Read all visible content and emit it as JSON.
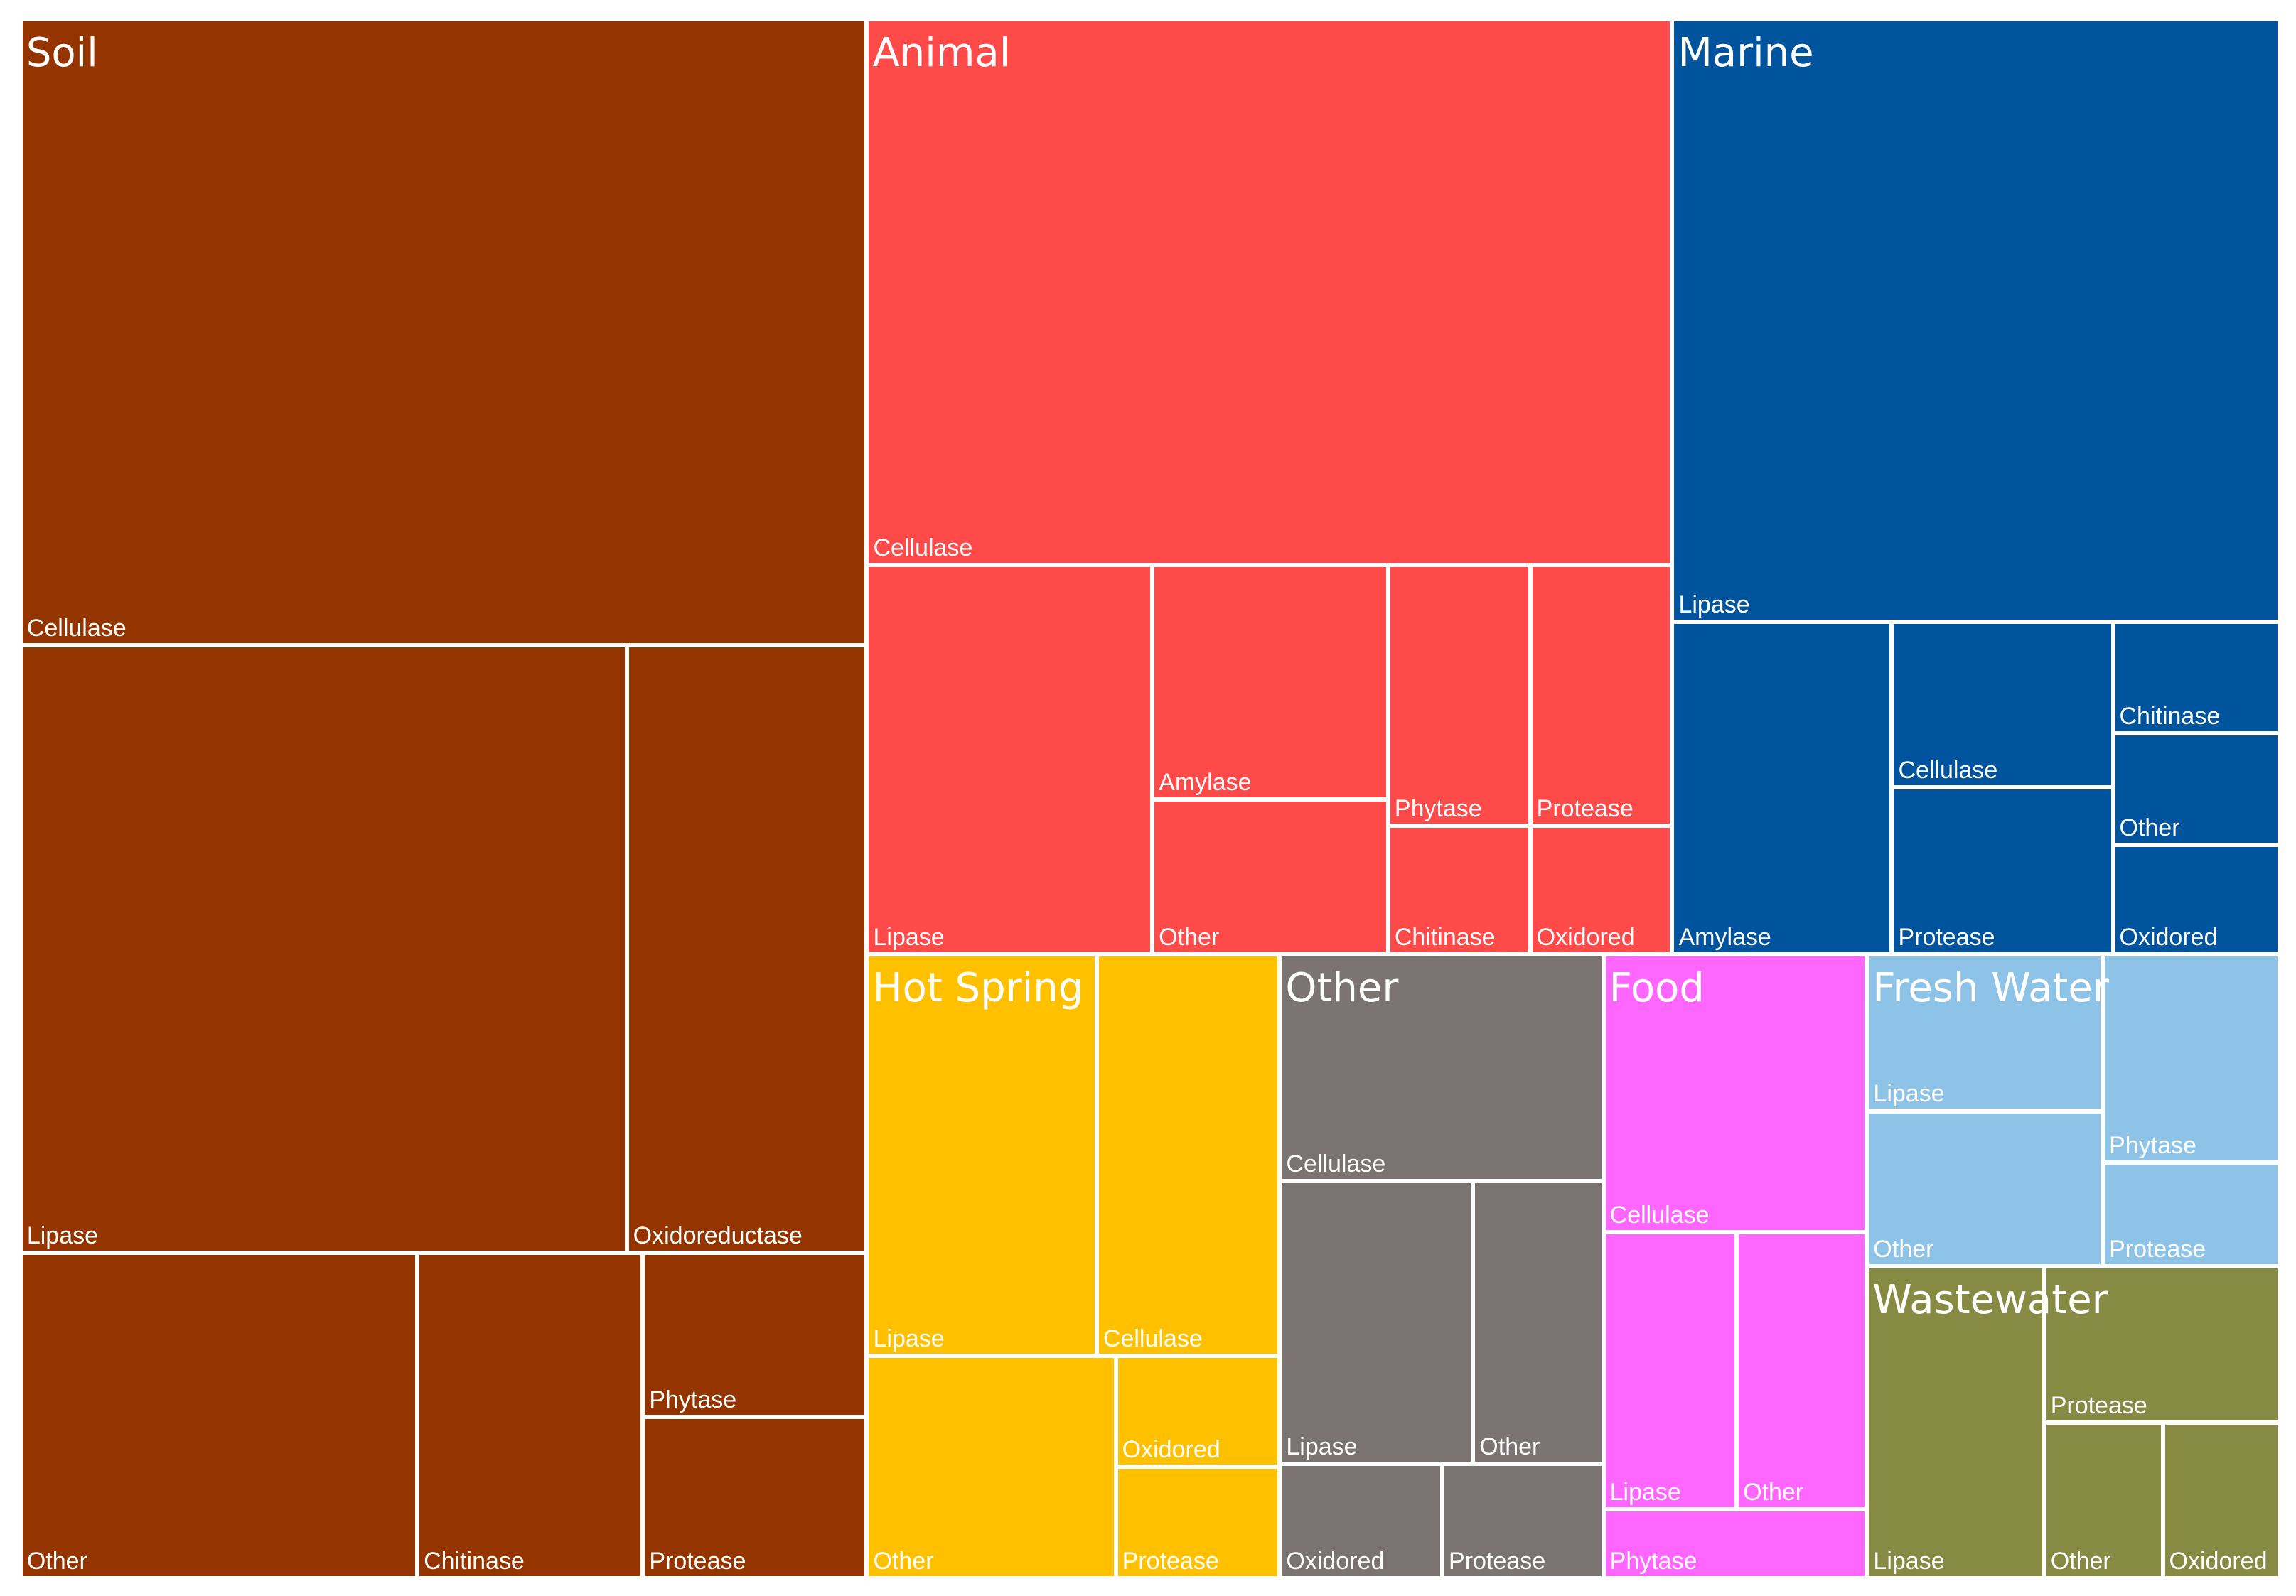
{
  "chart_data": {
    "type": "treemap",
    "title": "",
    "groups": [
      {
        "name": "Soil",
        "color": "#943500",
        "children": [
          {
            "name": "Cellulase"
          },
          {
            "name": "Lipase"
          },
          {
            "name": "Oxidoreductase"
          },
          {
            "name": "Other"
          },
          {
            "name": "Chitinase"
          },
          {
            "name": "Phytase"
          },
          {
            "name": "Protease"
          }
        ]
      },
      {
        "name": "Animal",
        "color": "#FF4A4A",
        "children": [
          {
            "name": "Cellulase"
          },
          {
            "name": "Lipase"
          },
          {
            "name": "Amylase"
          },
          {
            "name": "Other"
          },
          {
            "name": "Phytase"
          },
          {
            "name": "Chitinase"
          },
          {
            "name": "Protease"
          },
          {
            "name": "Oxidored"
          }
        ]
      },
      {
        "name": "Marine",
        "color": "#00549E",
        "children": [
          {
            "name": "Lipase"
          },
          {
            "name": "Amylase"
          },
          {
            "name": "Cellulase"
          },
          {
            "name": "Protease"
          },
          {
            "name": "Chitinase"
          },
          {
            "name": "Other"
          },
          {
            "name": "Oxidored"
          }
        ]
      },
      {
        "name": "Hot Spring",
        "color": "#FFC000",
        "children": [
          {
            "name": "Lipase"
          },
          {
            "name": "Cellulase"
          },
          {
            "name": "Other"
          },
          {
            "name": "Oxidored"
          },
          {
            "name": "Protease"
          }
        ]
      },
      {
        "name": "Other",
        "color": "#7A7372",
        "children": [
          {
            "name": "Cellulase"
          },
          {
            "name": "Lipase"
          },
          {
            "name": "Other"
          },
          {
            "name": "Oxidored"
          },
          {
            "name": "Protease"
          }
        ]
      },
      {
        "name": "Food",
        "color": "#FF66FF",
        "children": [
          {
            "name": "Cellulase"
          },
          {
            "name": "Lipase"
          },
          {
            "name": "Other"
          },
          {
            "name": "Phytase"
          }
        ]
      },
      {
        "name": "Fresh Water",
        "color": "#8EC3E8",
        "children": [
          {
            "name": "Lipase"
          },
          {
            "name": "Other"
          },
          {
            "name": "Phytase"
          },
          {
            "name": "Protease"
          }
        ]
      },
      {
        "name": "Wastewater",
        "color": "#878A42",
        "children": [
          {
            "name": "Lipase"
          },
          {
            "name": "Protease"
          },
          {
            "name": "Other"
          },
          {
            "name": "Oxidored"
          }
        ]
      }
    ]
  }
}
